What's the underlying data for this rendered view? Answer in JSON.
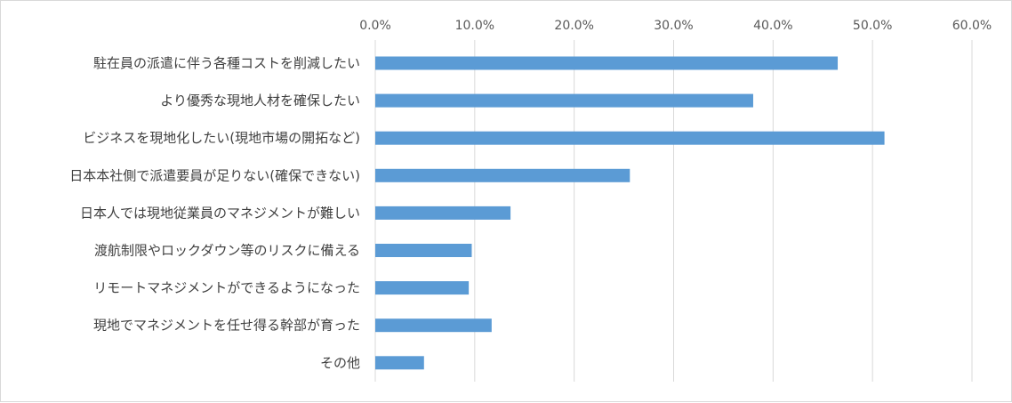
{
  "chart_data": {
    "type": "bar",
    "orientation": "horizontal",
    "title": "",
    "xlabel": "",
    "ylabel": "",
    "xlim": [
      0,
      60
    ],
    "x_ticks": [
      "0.0%",
      "10.0%",
      "20.0%",
      "30.0%",
      "40.0%",
      "50.0%",
      "60.0%"
    ],
    "x_axis_position": "top",
    "grid": true,
    "bar_color": "#5b9bd5",
    "categories": [
      "駐在員の派遣に伴う各種コストを削減したい",
      "より優秀な現地人材を確保したい",
      "ビジネスを現地化したい(現地市場の開拓など)",
      "日本本社側で派遣要員が足りない(確保できない)",
      "日本人では現地従業員のマネジメントが難しい",
      "渡航制限やロックダウン等のリスクに備える",
      "リモートマネジメントができるようになった",
      "現地でマネジメントを任せ得る幹部が育った",
      "その他"
    ],
    "values": [
      46.5,
      38.0,
      51.2,
      25.6,
      13.6,
      9.7,
      9.4,
      11.7,
      4.9
    ]
  }
}
